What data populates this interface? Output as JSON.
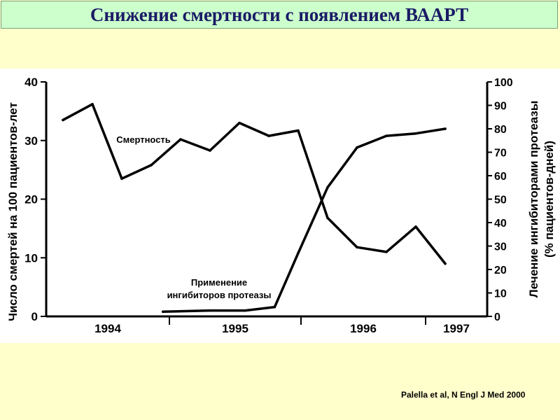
{
  "title": "Снижение смертности с появлением ВААРТ",
  "citation": "Palella et al, N Engl J Med 2000",
  "chart_data": {
    "type": "line",
    "xlabel": "",
    "ylabel_left": "Число смертей на 100 пациентов-лет",
    "ylabel_right_line1": "Лечение ингибиторами протеазы",
    "ylabel_right_line2": "(% пациентов-дней)",
    "x_ticks": [
      "1994",
      "1995",
      "1996",
      "1997"
    ],
    "x_range": [
      0,
      14
    ],
    "y_left_ticks": [
      "0",
      "10",
      "20",
      "30",
      "40"
    ],
    "y_left_range": [
      0,
      40
    ],
    "y_right_ticks": [
      "0",
      "10",
      "20",
      "30",
      "40",
      "50",
      "60",
      "70",
      "80",
      "90",
      "100"
    ],
    "y_right_range": [
      0,
      100
    ],
    "series": [
      {
        "name": "Смертность",
        "axis": "left",
        "x": [
          0,
          1,
          2,
          3,
          4,
          5,
          6,
          7,
          8,
          9,
          10,
          11,
          12,
          13,
          14
        ],
        "y": [
          33.5,
          36.2,
          23.5,
          25.8,
          30.2,
          28.3,
          33.0,
          30.8,
          31.7,
          16.8,
          11.8,
          11.0,
          15.3,
          9.0,
          null
        ]
      },
      {
        "name": "Применение ингибиторов протеазы",
        "name_line1": "Применение",
        "name_line2": "ингибиторов протеазы",
        "axis": "right",
        "x": [
          3.4,
          5.0,
          6.2,
          7.2,
          8.0,
          9.0,
          10.0,
          11.0,
          12.0,
          13.0
        ],
        "y": [
          2,
          2.5,
          2.5,
          4,
          27,
          55,
          72,
          77,
          78,
          80
        ]
      }
    ],
    "grid": false,
    "legend": "inline labels"
  }
}
